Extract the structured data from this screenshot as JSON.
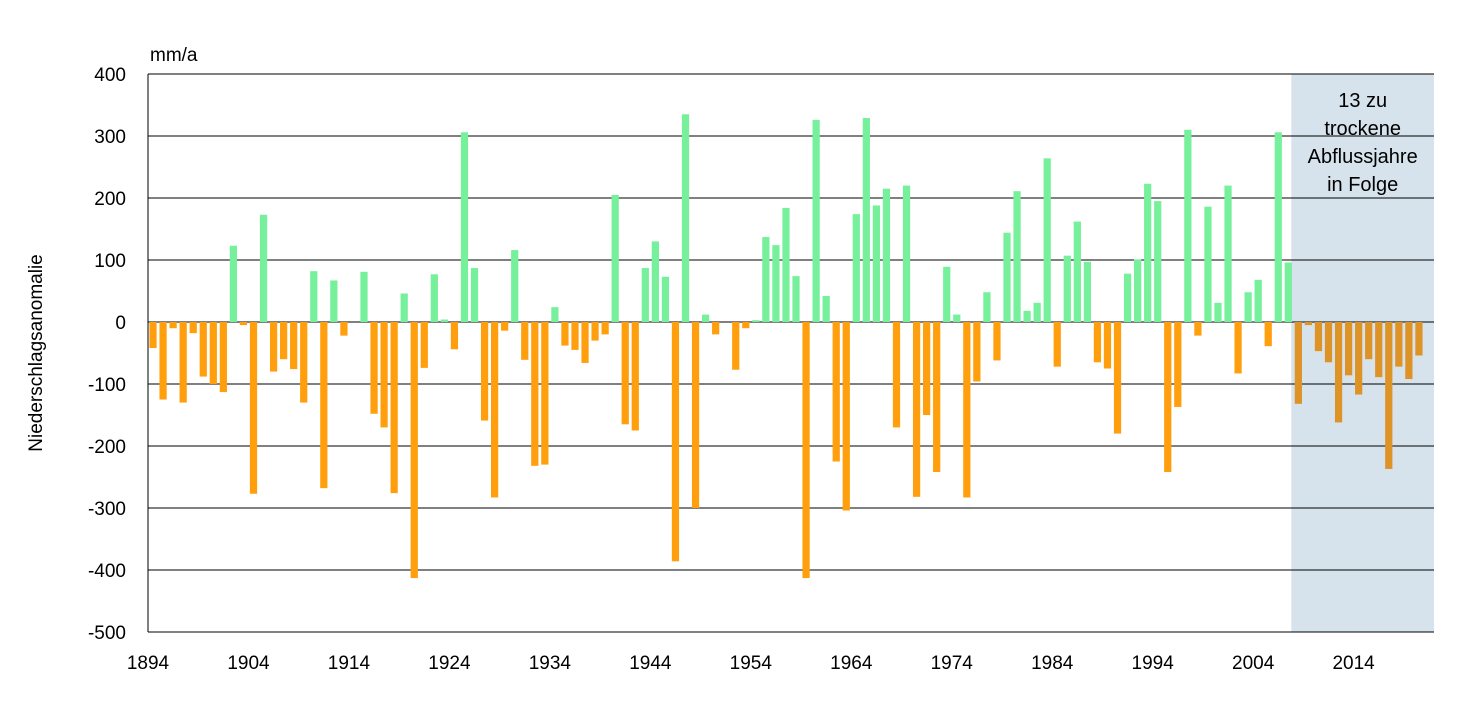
{
  "chart_data": {
    "type": "bar",
    "ylabel": "Niederschlagsanomalie",
    "yunit": "mm/a",
    "ylim": [
      -500,
      400
    ],
    "yticks": [
      400,
      300,
      200,
      100,
      0,
      -100,
      -200,
      -300,
      -400,
      -500
    ],
    "xtick_labels": [
      "1894",
      "1904",
      "1914",
      "1924",
      "1934",
      "1944",
      "1954",
      "1964",
      "1974",
      "1984",
      "1994",
      "2004",
      "2014"
    ],
    "grid": true,
    "colors": {
      "positive": "#77F09C",
      "negative": "#FF9F0D",
      "negative_highlighted": "#DE9327",
      "highlight_band": "#D6E3EC",
      "grid": "#000000"
    },
    "highlight": {
      "x_start": 2008,
      "x_end": 2021,
      "label_lines": [
        "13 zu",
        "trockene",
        "Abflussjahre",
        "in Folge"
      ]
    },
    "x": [
      1894,
      1895,
      1896,
      1897,
      1898,
      1899,
      1900,
      1901,
      1902,
      1903,
      1904,
      1905,
      1906,
      1907,
      1908,
      1909,
      1910,
      1911,
      1912,
      1913,
      1914,
      1915,
      1916,
      1917,
      1918,
      1919,
      1920,
      1921,
      1922,
      1923,
      1924,
      1925,
      1926,
      1927,
      1928,
      1929,
      1930,
      1931,
      1932,
      1933,
      1934,
      1935,
      1936,
      1937,
      1938,
      1939,
      1940,
      1941,
      1942,
      1943,
      1944,
      1945,
      1946,
      1947,
      1948,
      1949,
      1950,
      1951,
      1952,
      1953,
      1954,
      1955,
      1956,
      1957,
      1958,
      1959,
      1960,
      1961,
      1962,
      1963,
      1964,
      1965,
      1966,
      1967,
      1968,
      1969,
      1970,
      1971,
      1972,
      1973,
      1974,
      1975,
      1976,
      1977,
      1978,
      1979,
      1980,
      1981,
      1982,
      1983,
      1984,
      1985,
      1986,
      1987,
      1988,
      1989,
      1990,
      1991,
      1992,
      1993,
      1994,
      1995,
      1996,
      1997,
      1998,
      1999,
      2000,
      2001,
      2002,
      2003,
      2004,
      2005,
      2006,
      2007,
      2008,
      2009,
      2010,
      2011,
      2012,
      2013,
      2014,
      2015,
      2016,
      2017,
      2018,
      2019,
      2020
    ],
    "values": [
      -42,
      -125,
      -10,
      -130,
      -18,
      -88,
      -100,
      -113,
      123,
      -5,
      -277,
      173,
      -80,
      -60,
      -76,
      -130,
      82,
      -268,
      67,
      -22,
      0,
      81,
      -148,
      -170,
      -276,
      46,
      -413,
      -74,
      77,
      4,
      -44,
      306,
      87,
      -159,
      -283,
      -14,
      116,
      -61,
      -232,
      -230,
      24,
      -38,
      -45,
      -66,
      -30,
      -20,
      205,
      -165,
      -175,
      87,
      130,
      73,
      -386,
      335,
      -300,
      12,
      -20,
      0,
      -77,
      -10,
      3,
      137,
      124,
      184,
      74,
      -413,
      326,
      42,
      -225,
      -304,
      174,
      329,
      188,
      215,
      -170,
      220,
      -282,
      -150,
      -242,
      89,
      12,
      -283,
      -96,
      48,
      -62,
      144,
      211,
      18,
      31,
      264,
      -72,
      107,
      162,
      97,
      -65,
      -75,
      -180,
      78,
      101,
      223,
      195,
      -242,
      -137,
      310,
      -22,
      186,
      31,
      220,
      -83,
      48,
      68,
      -39,
      306,
      96,
      -132,
      -5,
      -47,
      -65,
      -162,
      -86,
      -117,
      -60,
      -89,
      -237,
      -72,
      -92,
      -54
    ]
  }
}
